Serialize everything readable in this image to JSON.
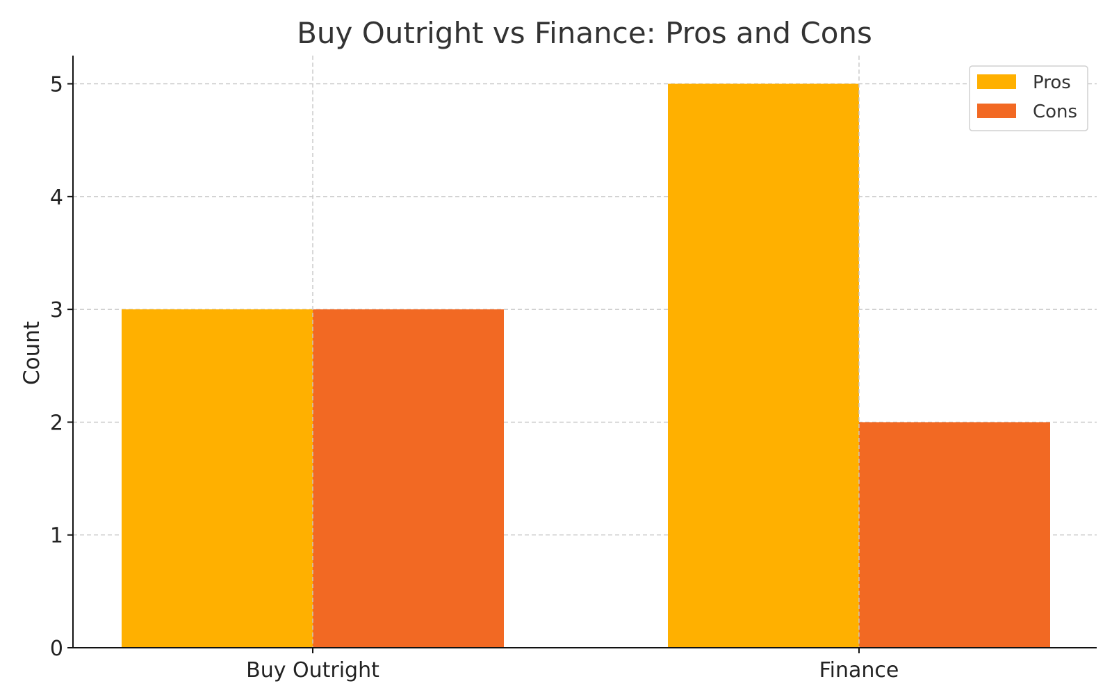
{
  "chart_data": {
    "type": "bar",
    "title": "Buy Outright vs Finance: Pros and Cons",
    "xlabel": "",
    "ylabel": "Count",
    "categories": [
      "Buy Outright",
      "Finance"
    ],
    "series": [
      {
        "name": "Pros",
        "values": [
          3,
          5
        ],
        "color": "#FFB000"
      },
      {
        "name": "Cons",
        "values": [
          3,
          2
        ],
        "color": "#F26923"
      }
    ],
    "ylim": [
      0,
      5.25
    ],
    "yticks": [
      0,
      1,
      2,
      3,
      4,
      5
    ],
    "grid": true,
    "legend_position": "top-right"
  }
}
